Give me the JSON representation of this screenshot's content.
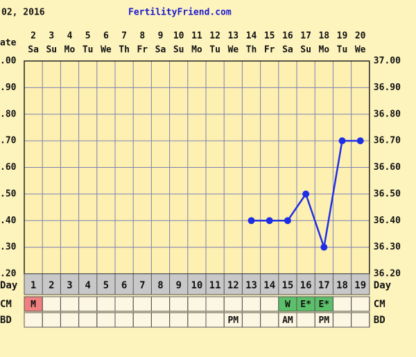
{
  "chart_data": {
    "type": "line",
    "subtitle": "02, 2016",
    "title": "FertilityFriend.com",
    "x_header": "ate",
    "categories": [
      "2",
      "3",
      "4",
      "5",
      "6",
      "7",
      "8",
      "9",
      "10",
      "11",
      "12",
      "13",
      "14",
      "15",
      "16",
      "17",
      "18",
      "19",
      "20"
    ],
    "weekdays": [
      "Sa",
      "Su",
      "Mo",
      "Tu",
      "We",
      "Th",
      "Fr",
      "Sa",
      "Su",
      "Mo",
      "Tu",
      "We",
      "Th",
      "Fr",
      "Sa",
      "Su",
      "Mo",
      "Tu",
      "We"
    ],
    "series": [
      {
        "color": "#1e2ee6",
        "values": [
          null,
          null,
          null,
          null,
          null,
          null,
          null,
          null,
          null,
          null,
          null,
          null,
          36.4,
          36.4,
          36.4,
          36.5,
          36.3,
          36.7,
          36.7
        ]
      }
    ],
    "ylim": [
      36.2,
      37.0
    ],
    "yticks": [
      {
        "value": 36.2,
        "label": "36.20"
      },
      {
        "value": 36.3,
        "label": "36.30"
      },
      {
        "value": 36.4,
        "label": "36.40"
      },
      {
        "value": 36.5,
        "label": "36.50"
      },
      {
        "value": 36.6,
        "label": "36.60"
      },
      {
        "value": 36.7,
        "label": "36.70"
      },
      {
        "value": 36.8,
        "label": "36.80"
      },
      {
        "value": 36.9,
        "label": "36.90"
      },
      {
        "value": 37.0,
        "label": "37.00"
      }
    ],
    "y_left_labels": [
      ".20",
      ".30",
      ".40",
      ".50",
      ".60",
      ".70",
      ".80",
      ".90",
      ".00"
    ],
    "grid": true,
    "day_label": "Day",
    "cycle_days": [
      1,
      2,
      3,
      4,
      5,
      6,
      7,
      8,
      9,
      10,
      11,
      12,
      13,
      14,
      15,
      16,
      17,
      18,
      19
    ],
    "cm_label": "CM",
    "cm": [
      "M",
      null,
      null,
      null,
      null,
      null,
      null,
      null,
      null,
      null,
      null,
      null,
      null,
      null,
      "W",
      "E*",
      "E*",
      null,
      null
    ],
    "cm_colors": [
      "#f08080",
      null,
      null,
      null,
      null,
      null,
      null,
      null,
      null,
      null,
      null,
      null,
      null,
      null,
      "#5cc06a",
      "#5cc06a",
      "#5cc06a",
      null,
      null
    ],
    "bd_label": "BD",
    "bd": [
      null,
      null,
      null,
      null,
      null,
      null,
      null,
      null,
      null,
      null,
      null,
      "PM",
      null,
      null,
      "AM",
      null,
      "PM",
      null,
      null
    ]
  }
}
